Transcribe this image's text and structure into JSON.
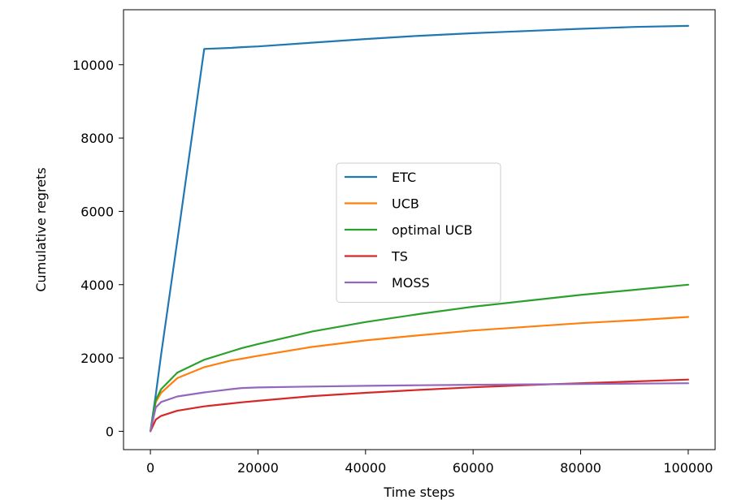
{
  "chart_data": {
    "type": "line",
    "title": "",
    "xlabel": "Time steps",
    "ylabel": "Cumulative regrets",
    "xlim": [
      -5000,
      105000
    ],
    "ylim": [
      -500,
      11500
    ],
    "x_ticks": [
      0,
      20000,
      40000,
      60000,
      80000,
      100000
    ],
    "y_ticks": [
      0,
      2000,
      4000,
      6000,
      8000,
      10000
    ],
    "x_tick_labels": [
      "0",
      "20000",
      "40000",
      "60000",
      "80000",
      "100000"
    ],
    "y_tick_labels": [
      "0",
      "2000",
      "4000",
      "6000",
      "8000",
      "10000"
    ],
    "grid": false,
    "legend_position": "center",
    "x": [
      0,
      1000,
      2000,
      5000,
      10000,
      15000,
      17000,
      20000,
      30000,
      40000,
      50000,
      60000,
      70000,
      80000,
      90000,
      100000
    ],
    "series": [
      {
        "name": "ETC",
        "color": "#1f77b4",
        "values": [
          0,
          1000,
          2100,
          5200,
          10430,
          10460,
          10480,
          10500,
          10600,
          10700,
          10790,
          10860,
          10920,
          10980,
          11030,
          11060
        ]
      },
      {
        "name": "UCB",
        "color": "#ff7f0e",
        "values": [
          0,
          800,
          1050,
          1450,
          1750,
          1930,
          1980,
          2060,
          2300,
          2480,
          2620,
          2750,
          2850,
          2950,
          3030,
          3120
        ]
      },
      {
        "name": "optimal UCB",
        "color": "#2ca02c",
        "values": [
          0,
          850,
          1150,
          1600,
          1950,
          2180,
          2270,
          2380,
          2720,
          2980,
          3200,
          3400,
          3560,
          3720,
          3860,
          4000
        ]
      },
      {
        "name": "TS",
        "color": "#d62728",
        "values": [
          0,
          320,
          420,
          560,
          680,
          760,
          790,
          830,
          960,
          1050,
          1130,
          1200,
          1260,
          1310,
          1360,
          1410
        ]
      },
      {
        "name": "MOSS",
        "color": "#9467bd",
        "values": [
          0,
          650,
          800,
          950,
          1060,
          1150,
          1180,
          1195,
          1220,
          1240,
          1255,
          1270,
          1280,
          1290,
          1300,
          1310
        ]
      }
    ]
  }
}
